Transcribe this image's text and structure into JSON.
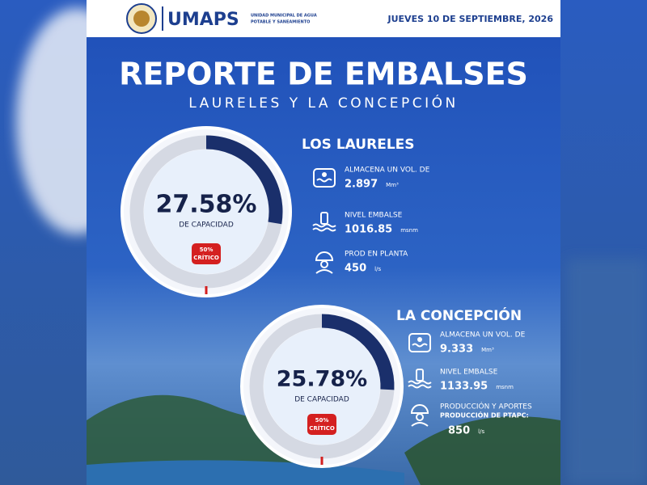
{
  "header": {
    "org": "UMAPS",
    "org_full": [
      "UNIDAD MUNICIPAL DE AGUA",
      "POTABLE Y SANEAMIENTO"
    ],
    "date": "JUEVES  10 DE SEPTIEMBRE, 2026"
  },
  "title": "REPORTE DE EMBALSES",
  "subtitle": "LAURELES Y LA CONCEPCIÓN",
  "reservoirs": [
    {
      "name": "LOS LAURELES",
      "gauge": {
        "value": 27.58,
        "label": "27.58%"
      },
      "gauge_caption": "DE CAPACIDAD",
      "critical": {
        "value": 50,
        "label": "50%",
        "text": "CRÍTICO"
      },
      "stats": [
        {
          "label": "ALMACENA UN VOL. DE",
          "value": "2.897",
          "unit": "Mm³"
        },
        {
          "label": "NIVEL EMBALSE",
          "value": "1016.85",
          "unit": "msnm"
        },
        {
          "label": "PROD EN PLANTA",
          "value": "450",
          "unit": "l/s"
        }
      ]
    },
    {
      "name": "LA CONCEPCIÓN",
      "gauge": {
        "value": 25.78,
        "label": "25.78%"
      },
      "gauge_caption": "DE CAPACIDAD",
      "critical": {
        "value": 50,
        "label": "50%",
        "text": "CRÍTICO"
      },
      "stats": [
        {
          "label": "ALMACENA UN VOL. DE",
          "value": "9.333",
          "unit": "Mm³"
        },
        {
          "label": "NIVEL EMBALSE",
          "value": "1133.95",
          "unit": "msnm"
        },
        {
          "label": "PRODUCCIÓN Y APORTES",
          "sublabel": "PRODUCCIÓN DE PTAPC:",
          "value": "850",
          "unit": "l/s"
        }
      ]
    }
  ]
}
